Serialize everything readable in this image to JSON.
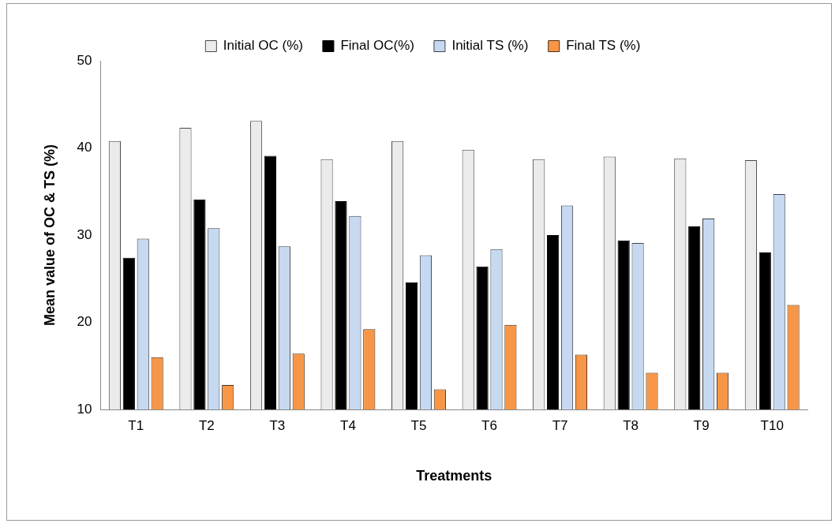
{
  "chart_data": {
    "type": "bar",
    "categories": [
      "T1",
      "T2",
      "T3",
      "T4",
      "T5",
      "T6",
      "T7",
      "T8",
      "T9",
      "T10"
    ],
    "series": [
      {
        "name": "Initial OC (%)",
        "color": "#ebebeb",
        "values": [
          40.8,
          42.3,
          43.1,
          38.7,
          40.8,
          39.8,
          38.7,
          39.0,
          38.8,
          38.6
        ]
      },
      {
        "name": "Final OC(%)",
        "color": "#000000",
        "values": [
          27.4,
          34.1,
          39.1,
          33.9,
          24.6,
          26.4,
          30.0,
          29.4,
          31.0,
          28.0
        ]
      },
      {
        "name": "Initial TS (%)",
        "color": "#c6d9f1",
        "values": [
          29.6,
          30.8,
          28.7,
          32.2,
          27.7,
          28.4,
          33.4,
          29.1,
          31.9,
          34.7
        ]
      },
      {
        "name": "Final TS (%)",
        "color": "#f79646",
        "values": [
          16.0,
          12.8,
          16.4,
          19.2,
          12.3,
          19.7,
          16.3,
          14.2,
          14.2,
          22.0
        ]
      }
    ],
    "xlabel": "Treatments",
    "ylabel": "Mean value of OC & TS (%)",
    "ylim": [
      10,
      50
    ],
    "yticks": [
      10,
      20,
      30,
      40,
      50
    ],
    "grid": false,
    "legend": "top"
  }
}
